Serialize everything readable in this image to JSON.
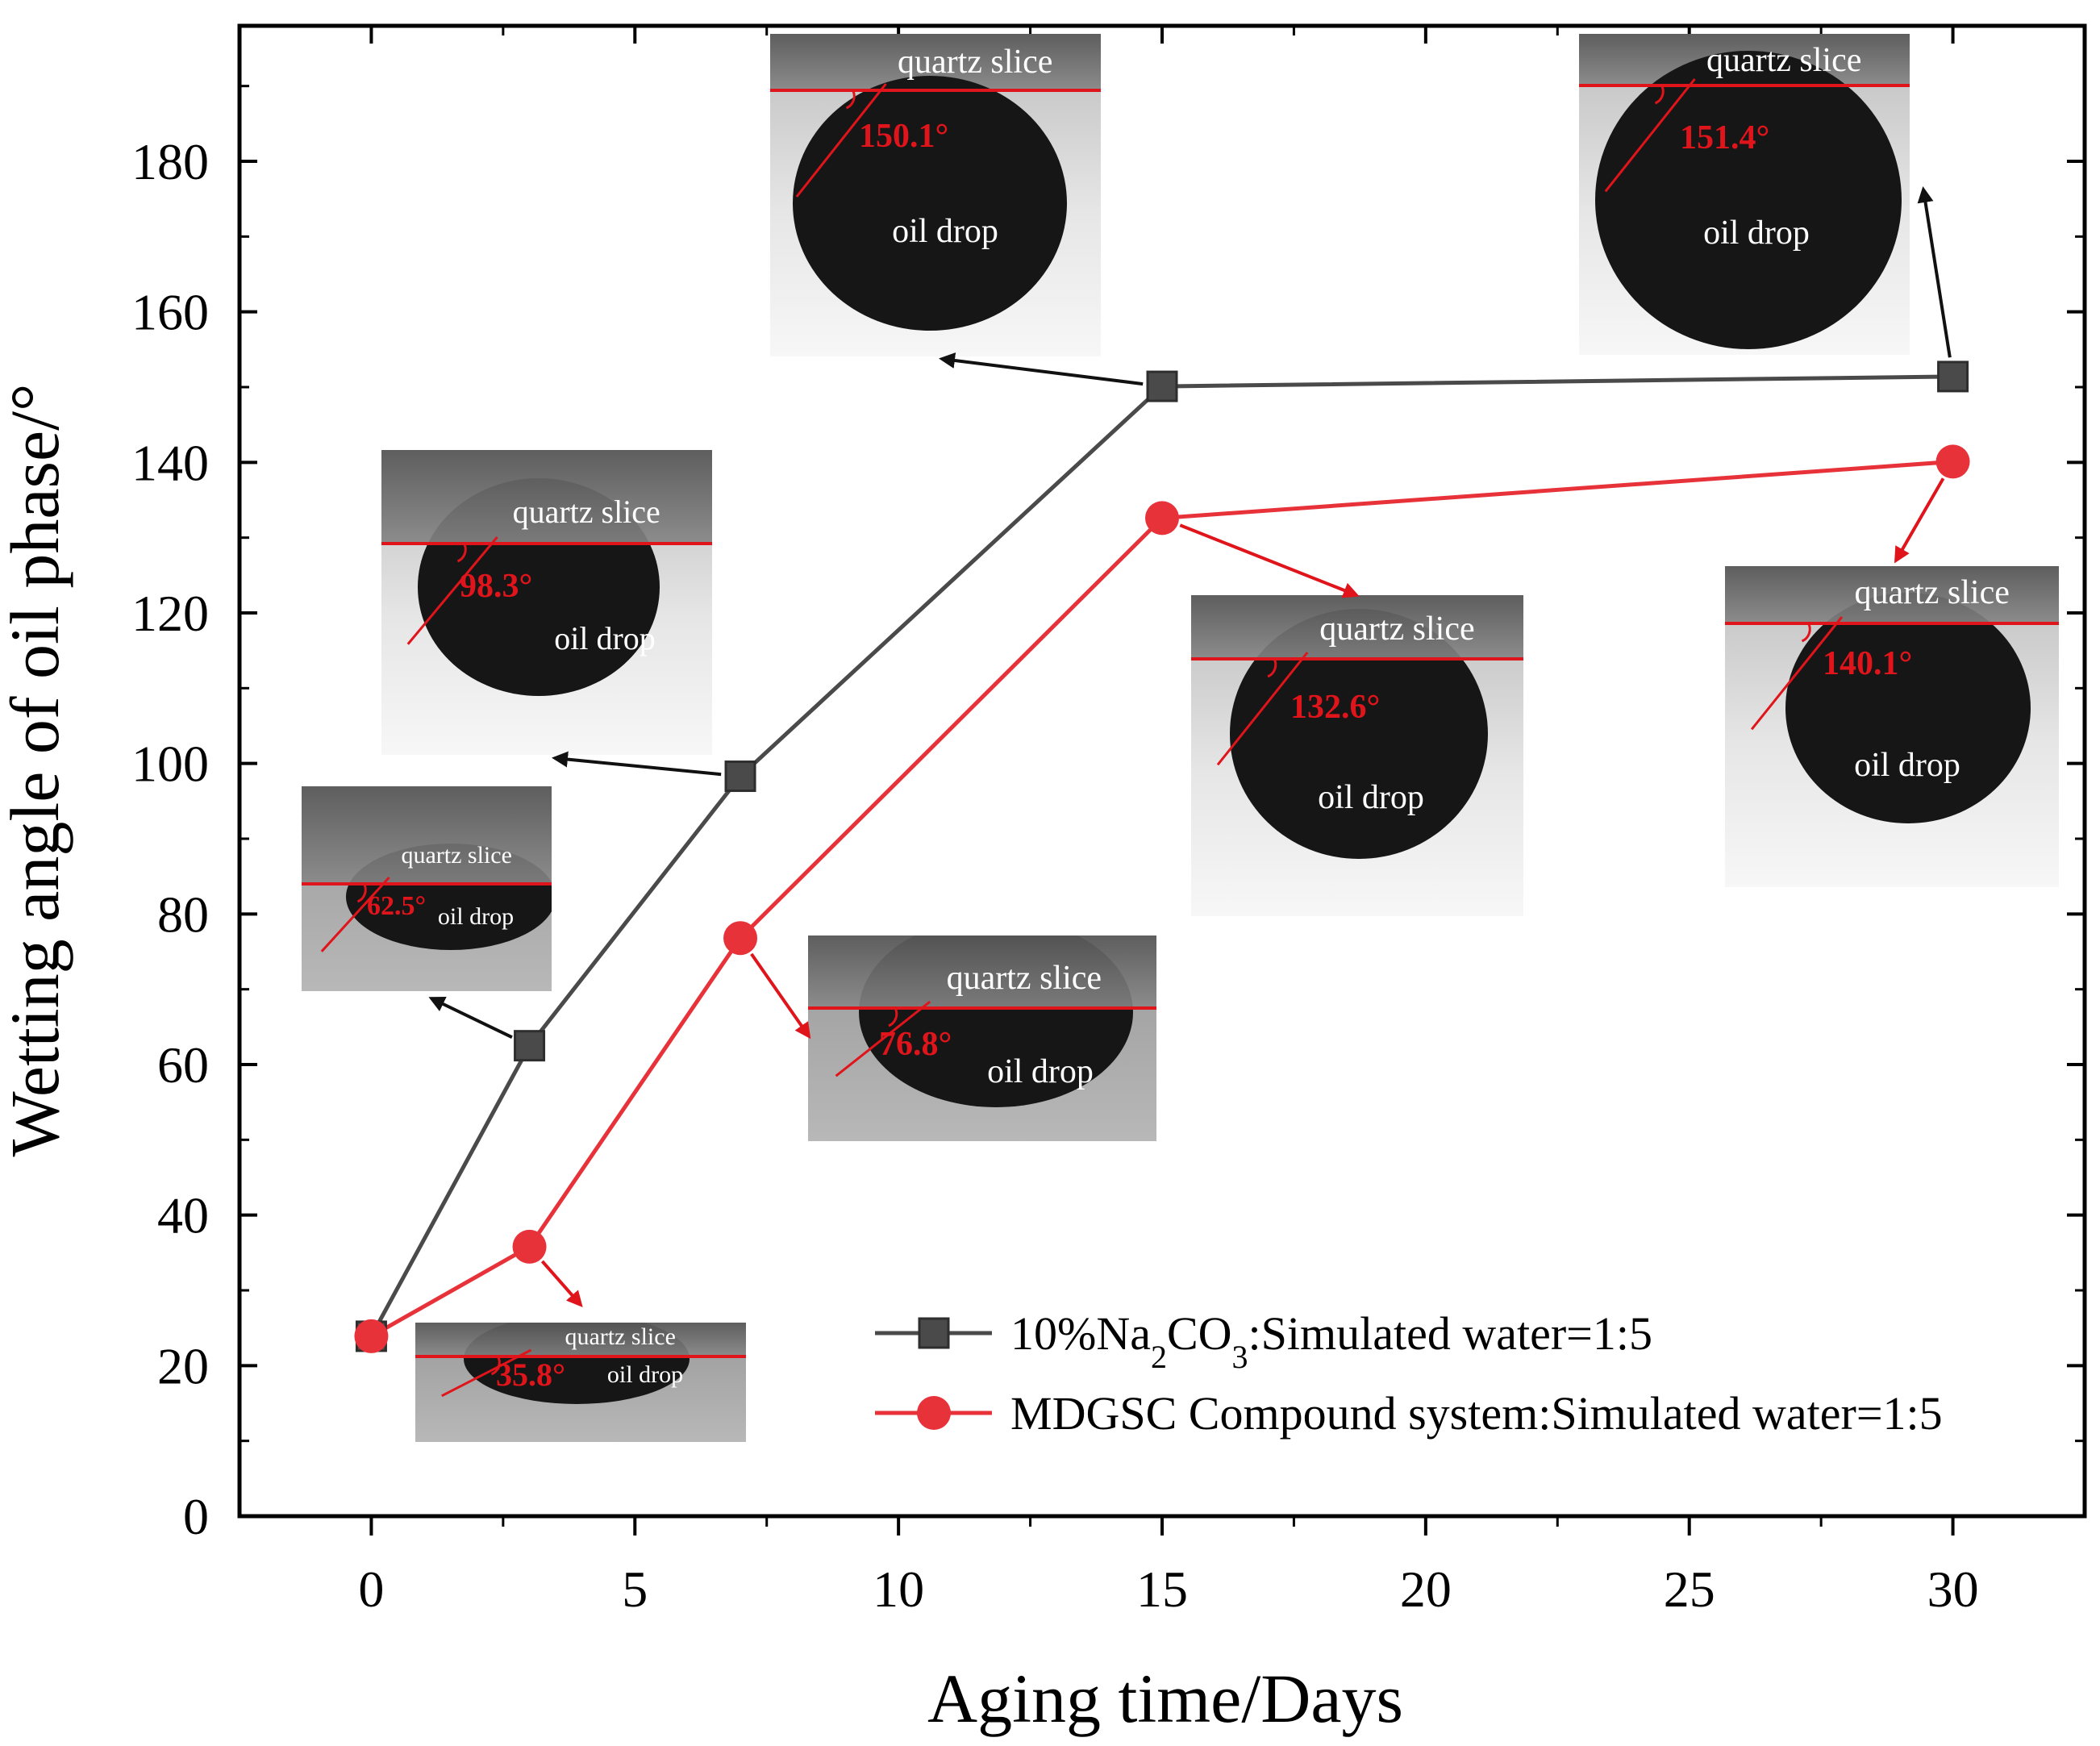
{
  "chart_data": {
    "type": "line",
    "xlabel": "Aging time/Days",
    "ylabel": "Wetting angle of oil phase/°",
    "xlim": [
      -2.5,
      32.5
    ],
    "ylim": [
      0,
      198
    ],
    "xticks": [
      0,
      5,
      10,
      15,
      20,
      25,
      30
    ],
    "yticks": [
      0,
      20,
      40,
      60,
      80,
      100,
      120,
      140,
      160,
      180
    ],
    "x": [
      0,
      3,
      7,
      15,
      30
    ],
    "series": [
      {
        "name": "10%Na2CO3:Simulated water=1:5",
        "legend_parts": [
          "10%Na",
          "2",
          "CO",
          "3",
          ":Simulated water=1:5"
        ],
        "marker": "square",
        "color": "#4a4a4a",
        "values": [
          23.9,
          62.5,
          98.3,
          150.1,
          151.4
        ]
      },
      {
        "name": "MDGSC Compound system:Simulated water=1:5",
        "legend_parts": [
          "MDGSC Compound system:Simulated water=1:5"
        ],
        "marker": "circle",
        "color": "#e8323a",
        "values": [
          23.9,
          35.8,
          76.8,
          132.6,
          140.1
        ]
      }
    ],
    "legend_position": "bottom-right",
    "annotations": [
      {
        "series": 0,
        "day": 3,
        "angle": "62.5°",
        "slice": "quartz slice",
        "drop": "oil drop"
      },
      {
        "series": 0,
        "day": 7,
        "angle": "98.3°",
        "slice": "quartz slice",
        "drop": "oil drop"
      },
      {
        "series": 0,
        "day": 15,
        "angle": "150.1°",
        "slice": "quartz slice",
        "drop": "oil drop"
      },
      {
        "series": 0,
        "day": 30,
        "angle": "151.4°",
        "slice": "quartz slice",
        "drop": "oil drop"
      },
      {
        "series": 1,
        "day": 3,
        "angle": "35.8°",
        "slice": "quartz slice",
        "drop": "oil drop"
      },
      {
        "series": 1,
        "day": 7,
        "angle": "76.8°",
        "slice": "quartz slice",
        "drop": "oil drop"
      },
      {
        "series": 1,
        "day": 15,
        "angle": "132.6°",
        "slice": "quartz slice",
        "drop": "oil drop"
      },
      {
        "series": 1,
        "day": 30,
        "angle": "140.1°",
        "slice": "quartz slice",
        "drop": "oil drop"
      }
    ]
  }
}
